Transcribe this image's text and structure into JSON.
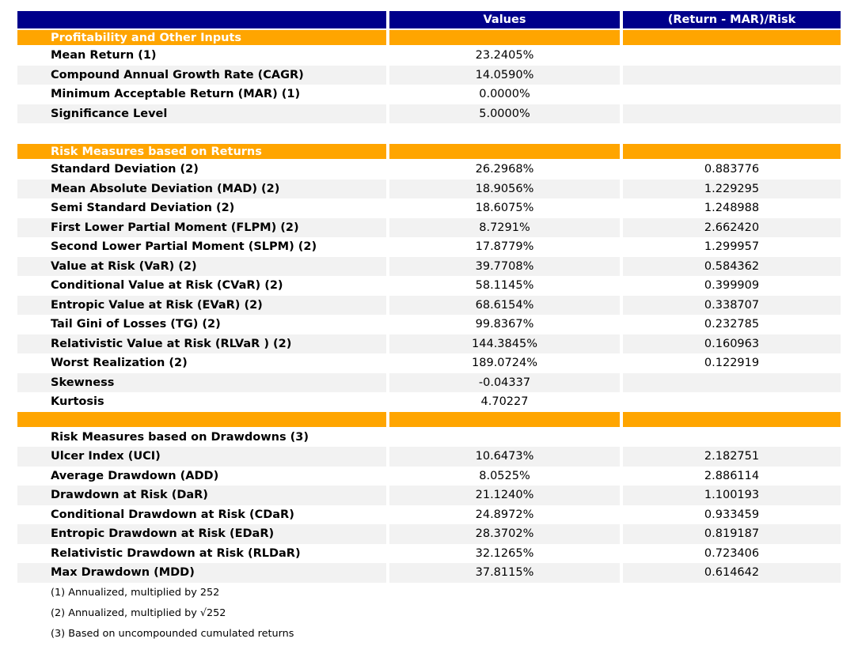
{
  "colors": {
    "header_bg": "#00008B",
    "header_text": "#FFFFFF",
    "section_bg": "#FFA500",
    "section_text": "#FFFFFF",
    "stripe_bg": "#F2F2F2",
    "body_text": "#000000"
  },
  "chart_data": {
    "type": "table",
    "columns": [
      "",
      "Values",
      "(Return - MAR)/Risk"
    ],
    "sections": [
      {
        "title": "Profitability and Other Inputs",
        "title_style": "orange",
        "spacer_before": false,
        "orange_band_before": false,
        "stripe_start": "white",
        "rows": [
          {
            "label": "Mean Return (1)",
            "value": "23.2405%",
            "ratio": ""
          },
          {
            "label": "Compound Annual Growth Rate (CAGR)",
            "value": "14.0590%",
            "ratio": ""
          },
          {
            "label": "Minimum Acceptable Return (MAR) (1)",
            "value": "0.0000%",
            "ratio": ""
          },
          {
            "label": "Significance Level",
            "value": "5.0000%",
            "ratio": ""
          }
        ]
      },
      {
        "title": "Risk Measures based on Returns",
        "title_style": "orange",
        "spacer_before": true,
        "orange_band_before": false,
        "stripe_start": "white",
        "rows": [
          {
            "label": "Standard Deviation (2)",
            "value": "26.2968%",
            "ratio": "0.883776"
          },
          {
            "label": "Mean Absolute Deviation (MAD) (2)",
            "value": "18.9056%",
            "ratio": "1.229295"
          },
          {
            "label": "Semi Standard Deviation (2)",
            "value": "18.6075%",
            "ratio": "1.248988"
          },
          {
            "label": "First Lower Partial Moment (FLPM) (2)",
            "value": "8.7291%",
            "ratio": "2.662420"
          },
          {
            "label": "Second Lower Partial Moment (SLPM) (2)",
            "value": "17.8779%",
            "ratio": "1.299957"
          },
          {
            "label": "Value at Risk (VaR) (2)",
            "value": "39.7708%",
            "ratio": "0.584362"
          },
          {
            "label": "Conditional Value at Risk (CVaR) (2)",
            "value": "58.1145%",
            "ratio": "0.399909"
          },
          {
            "label": "Entropic Value at Risk (EVaR) (2)",
            "value": "68.6154%",
            "ratio": "0.338707"
          },
          {
            "label": "Tail Gini of Losses (TG) (2)",
            "value": "99.8367%",
            "ratio": "0.232785"
          },
          {
            "label": "Relativistic Value at Risk (RLVaR ) (2)",
            "value": "144.3845%",
            "ratio": "0.160963"
          },
          {
            "label": "Worst Realization (2)",
            "value": "189.0724%",
            "ratio": "0.122919"
          },
          {
            "label": "Skewness",
            "value": "-0.04337",
            "ratio": ""
          },
          {
            "label": "Kurtosis",
            "value": "4.70227",
            "ratio": ""
          }
        ]
      },
      {
        "title": "Risk Measures based on Drawdowns (3)",
        "title_style": "plain",
        "spacer_before": false,
        "orange_band_before": true,
        "stripe_start": "gray",
        "rows": [
          {
            "label": "Ulcer Index (UCI)",
            "value": "10.6473%",
            "ratio": "2.182751"
          },
          {
            "label": "Average Drawdown (ADD)",
            "value": "8.0525%",
            "ratio": "2.886114"
          },
          {
            "label": "Drawdown at Risk (DaR)",
            "value": "21.1240%",
            "ratio": "1.100193"
          },
          {
            "label": "Conditional Drawdown at Risk (CDaR)",
            "value": "24.8972%",
            "ratio": "0.933459"
          },
          {
            "label": "Entropic Drawdown at Risk (EDaR)",
            "value": "28.3702%",
            "ratio": "0.819187"
          },
          {
            "label": "Relativistic Drawdown at Risk (RLDaR)",
            "value": "32.1265%",
            "ratio": "0.723406"
          },
          {
            "label": "Max Drawdown (MDD)",
            "value": "37.8115%",
            "ratio": "0.614642"
          }
        ]
      }
    ],
    "footnotes": [
      "(1) Annualized, multiplied by 252",
      "(2) Annualized, multiplied by √252",
      "(3) Based on uncompounded cumulated returns"
    ]
  }
}
